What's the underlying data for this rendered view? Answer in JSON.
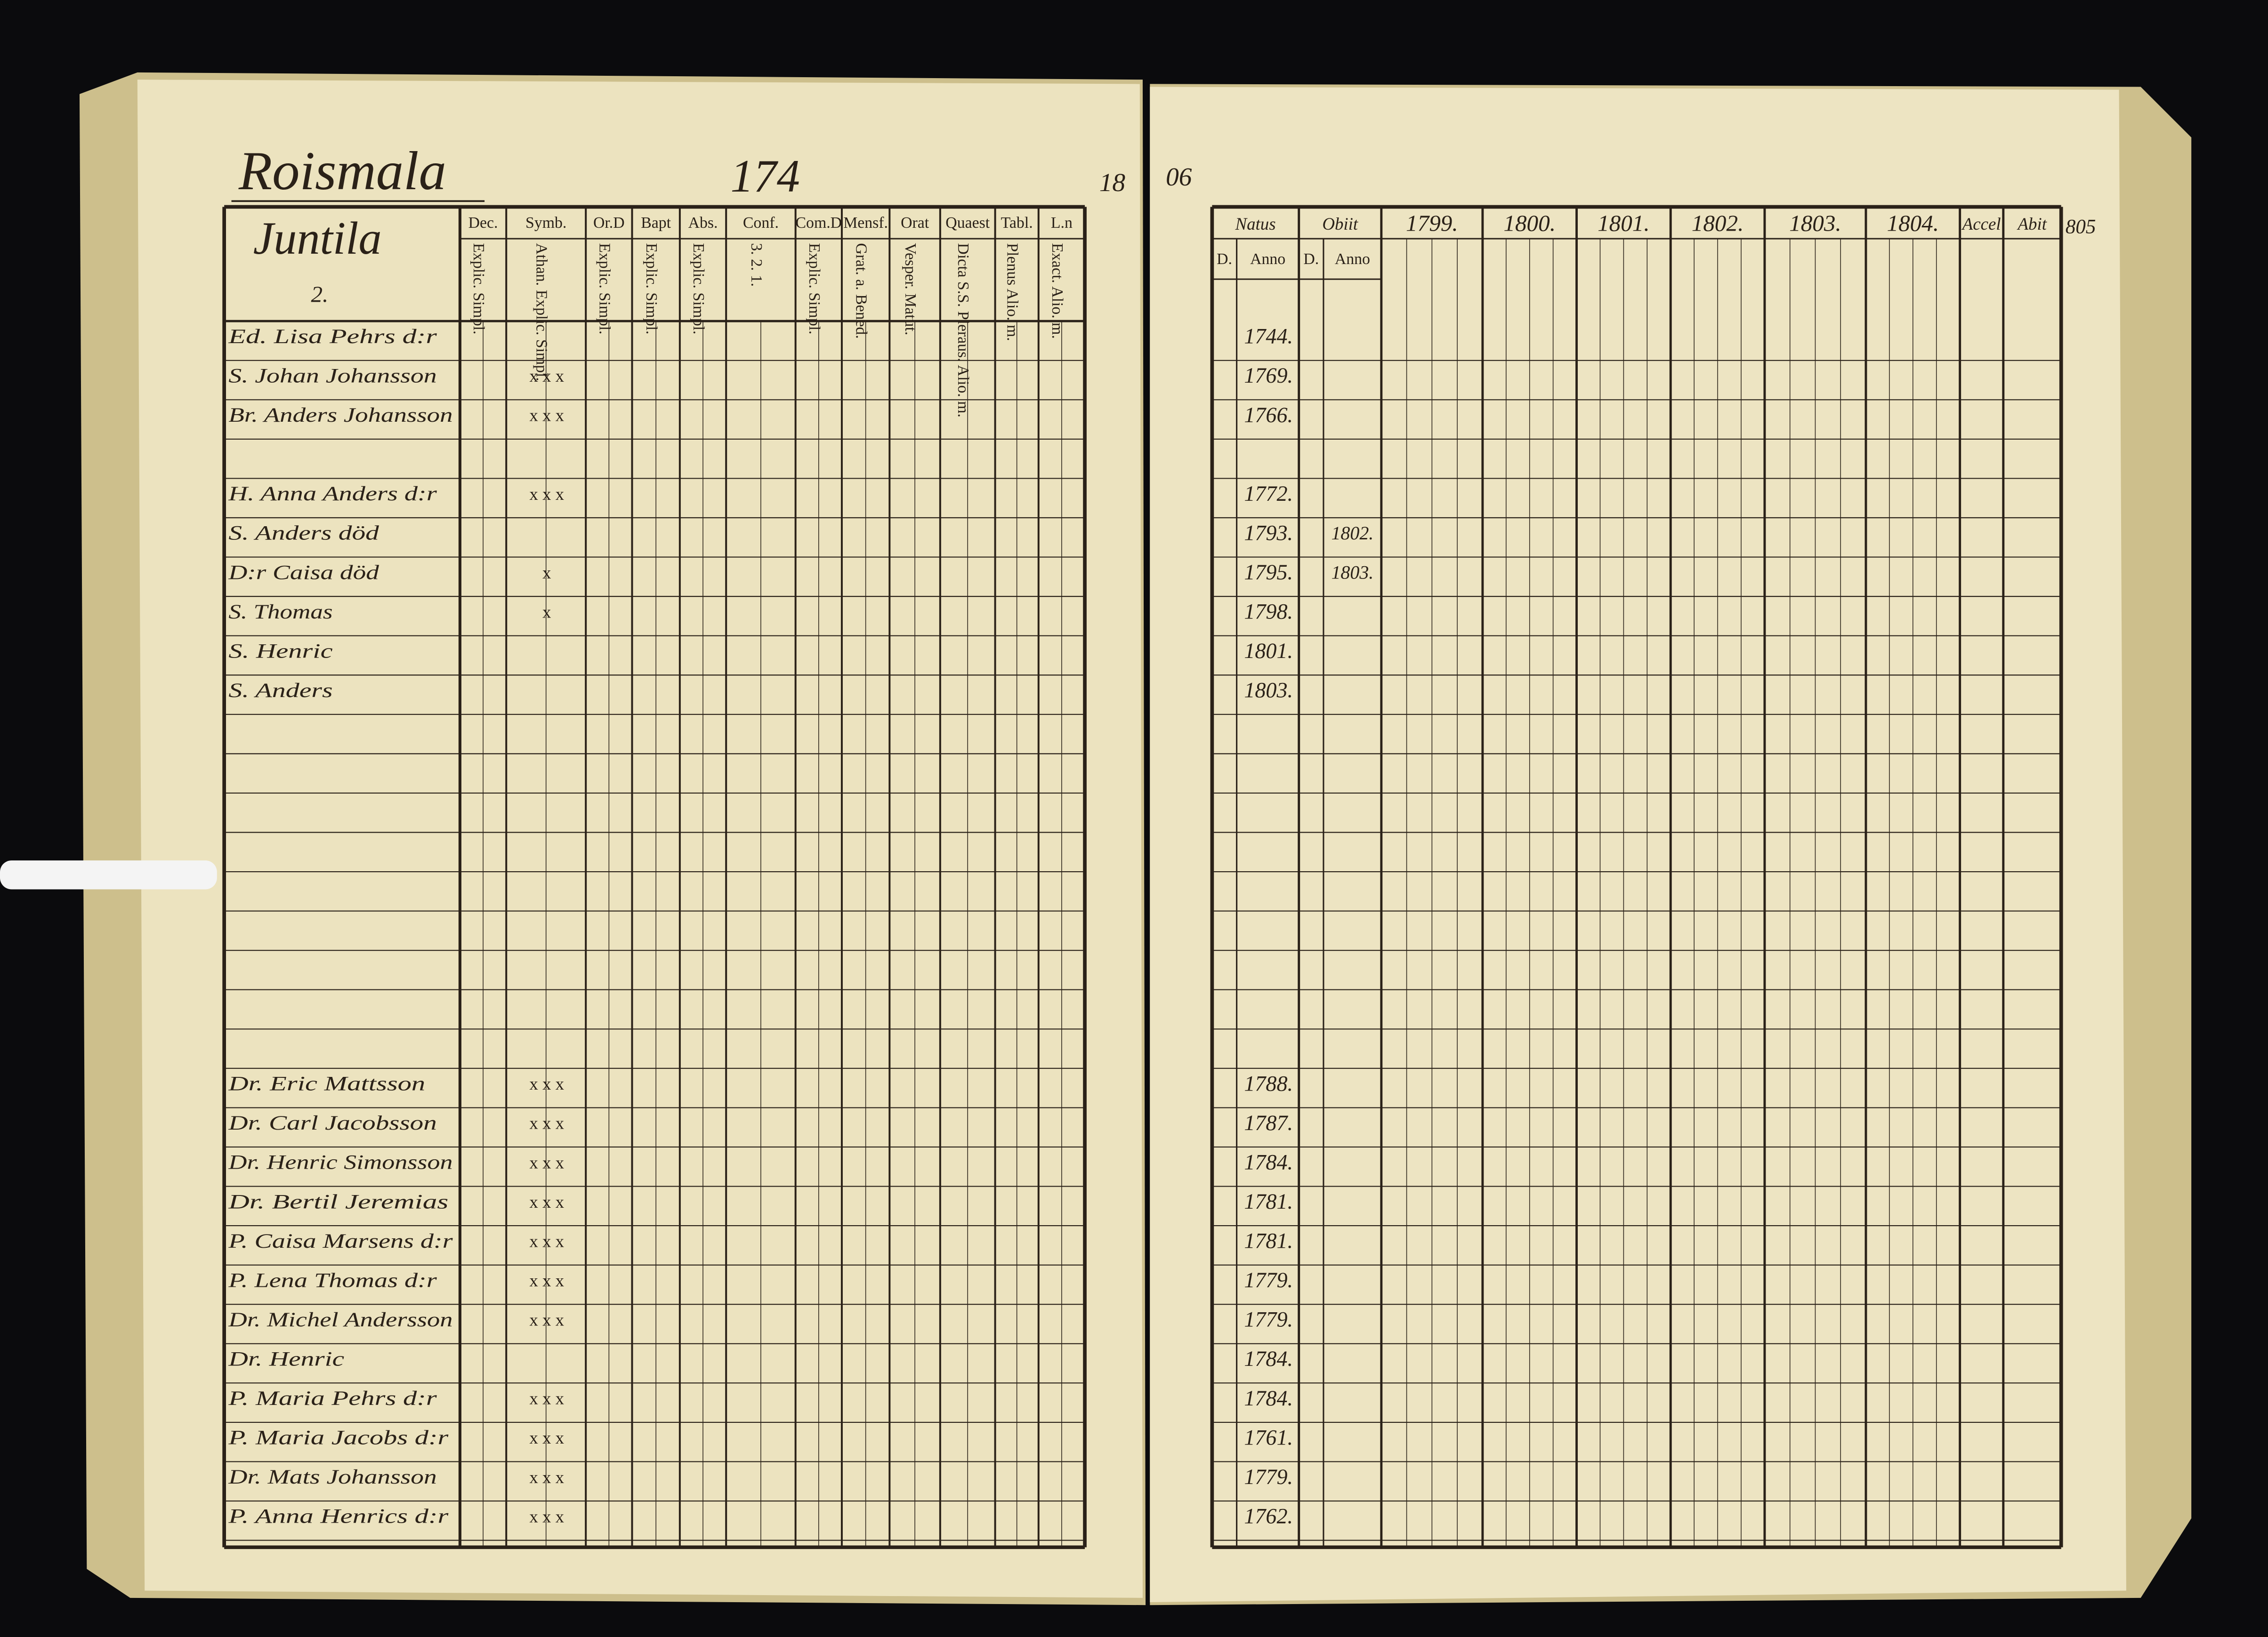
{
  "left_page": {
    "village": "Roismala",
    "page_number": "174",
    "corner_left": "18",
    "corner_right": "06",
    "farm": "Juntila",
    "farm_number": "2.",
    "columns": [
      "Dec.",
      "Symb.",
      "Or.D",
      "Bapt",
      "Abs.",
      "Conf.",
      "Com.D",
      "Mensf.",
      "Orat",
      "Quaest",
      "Tabl.",
      "L.n"
    ],
    "subcolumns": [
      "Explic. Simpl.",
      "Athan. Explic. Simpl.",
      "Explic. Simpl.",
      "Explic. Simpl.",
      "Explic. Simpl.",
      "3. 2. 1.",
      "Explic. Simpl.",
      "Grat. a. Bened.",
      "Vesper. Matut.",
      "Dicta S.S. Pleraus. Alio. m.",
      "Plenus Alio. m.",
      "Exact. Alio. m."
    ]
  },
  "right_page": {
    "columns": [
      "Natus",
      "Obiit",
      "1799.",
      "1800.",
      "1801.",
      "1802.",
      "1803.",
      "1804.",
      "Accel",
      "Abit"
    ],
    "subcolumns": [
      "D.",
      "Anno",
      "D.",
      "Anno"
    ],
    "corner": "805"
  },
  "rows": [
    {
      "name": "Ed. Lisa Pehrs d:r",
      "symb": "",
      "born": "1744.",
      "died": ""
    },
    {
      "name": "S. Johan Johansson",
      "symb": "x x x",
      "born": "1769.",
      "died": ""
    },
    {
      "name": "Br. Anders Johansson",
      "symb": "x x x",
      "born": "1766.",
      "died": ""
    },
    {
      "name": "H. Anna Anders d:r",
      "symb": "x x x",
      "born": "1772.",
      "died": ""
    },
    {
      "name": "S. Anders död",
      "symb": "",
      "born": "1793.",
      "died": "1802."
    },
    {
      "name": "D:r Caisa död",
      "symb": "x",
      "born": "1795.",
      "died": "1803."
    },
    {
      "name": "S. Thomas",
      "symb": "x",
      "born": "1798.",
      "died": ""
    },
    {
      "name": "S. Henric",
      "symb": "",
      "born": "1801.",
      "died": ""
    },
    {
      "name": "S. Anders",
      "symb": "",
      "born": "1803.",
      "died": ""
    },
    {
      "name": "Dr. Eric Mattsson",
      "symb": "x x x",
      "born": "1788.",
      "died": ""
    },
    {
      "name": "Dr. Carl Jacobsson",
      "symb": "x x x",
      "born": "1787.",
      "died": ""
    },
    {
      "name": "Dr. Henric Simonsson",
      "symb": "x x x",
      "born": "1784.",
      "died": ""
    },
    {
      "name": "Dr. Bertil Jeremias",
      "symb": "x x x",
      "born": "1781.",
      "died": ""
    },
    {
      "name": "P. Caisa Marsens d:r",
      "symb": "x x x",
      "born": "1781.",
      "died": ""
    },
    {
      "name": "P. Lena Thomas d:r",
      "symb": "x x x",
      "born": "1779.",
      "died": ""
    },
    {
      "name": "Dr. Michel Andersson",
      "symb": "x x x",
      "born": "1779.",
      "died": ""
    },
    {
      "name": "Dr. Henric",
      "symb": "",
      "born": "1784.",
      "died": ""
    },
    {
      "name": "P. Maria Pehrs d:r",
      "symb": "x x x",
      "born": "1784.",
      "died": ""
    },
    {
      "name": "P. Maria Jacobs d:r",
      "symb": "x x x",
      "born": "1761.",
      "died": ""
    },
    {
      "name": "Dr. Mats Johansson",
      "symb": "x x x",
      "born": "1779.",
      "died": ""
    },
    {
      "name": "P. Anna Henrics d:r",
      "symb": "x x x",
      "born": "1762.",
      "died": ""
    }
  ]
}
